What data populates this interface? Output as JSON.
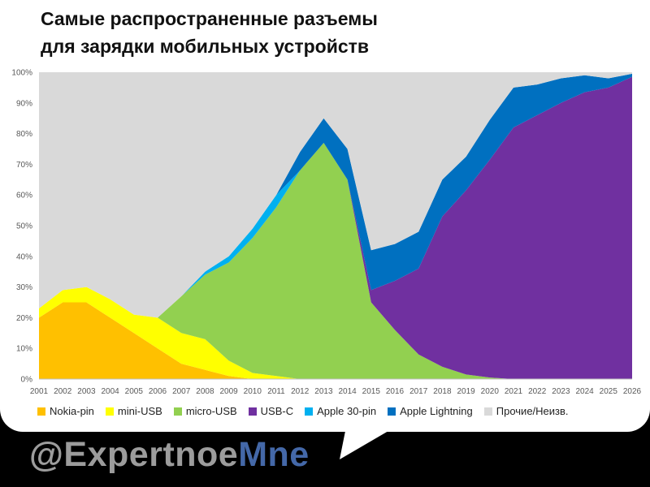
{
  "header": {
    "title_line1": "Самые распространенные разъемы",
    "title_line2": "для зарядки мобильных устройств"
  },
  "watermark": {
    "prefix": "@Expertnoe",
    "suffix": "Mne"
  },
  "colors": {
    "nokia": "#ffc000",
    "miniusb": "#ffff00",
    "microusb": "#92d050",
    "usbc": "#7030a0",
    "apple30": "#00b0f0",
    "lightning": "#0070c0",
    "other": "#d9d9d9"
  },
  "chart_data": {
    "type": "area",
    "stacked": true,
    "x": [
      "2001",
      "2002",
      "2003",
      "2004",
      "2005",
      "2006",
      "2007",
      "2008",
      "2009",
      "2010",
      "2011",
      "2012",
      "2013",
      "2014",
      "2015",
      "2016",
      "2017",
      "2018",
      "2019",
      "2020",
      "2021",
      "2022",
      "2023",
      "2024",
      "2025",
      "2026"
    ],
    "ylim": [
      0,
      100
    ],
    "yticks": [
      "0%",
      "10%",
      "20%",
      "30%",
      "40%",
      "50%",
      "60%",
      "70%",
      "80%",
      "90%",
      "100%"
    ],
    "grid": false,
    "legend_position": "bottom",
    "series": [
      {
        "name": "Nokia-pin",
        "color": "#ffc000",
        "values": [
          20,
          25,
          25,
          20,
          15,
          10,
          5,
          3,
          1,
          0,
          0,
          0,
          0,
          0,
          0,
          0,
          0,
          0,
          0,
          0,
          0,
          0,
          0,
          0,
          0,
          0
        ]
      },
      {
        "name": "mini-USB",
        "color": "#ffff00",
        "values": [
          3,
          4,
          5,
          6,
          6,
          10,
          10,
          10,
          5,
          2,
          1,
          0,
          0,
          0,
          0,
          0,
          0,
          0,
          0,
          0,
          0,
          0,
          0,
          0,
          0,
          0
        ]
      },
      {
        "name": "micro-USB",
        "color": "#92d050",
        "values": [
          0,
          0,
          0,
          0,
          0,
          0,
          12,
          21,
          32,
          44,
          55,
          68,
          77,
          65,
          25,
          16,
          8,
          4,
          1.5,
          0.5,
          0,
          0,
          0,
          0,
          0,
          0
        ]
      },
      {
        "name": "USB-C",
        "color": "#7030a0",
        "values": [
          0,
          0,
          0,
          0,
          0,
          0,
          0,
          0,
          0,
          0,
          0,
          0,
          0,
          0,
          4,
          16,
          28,
          49,
          60,
          71,
          82,
          86,
          90,
          93.5,
          95,
          98.5
        ]
      },
      {
        "name": "Apple 30-pin",
        "color": "#00b0f0",
        "values": [
          0,
          0,
          0,
          0,
          0,
          0,
          0,
          1,
          2,
          3,
          4,
          0,
          0,
          0,
          0,
          0,
          0,
          0,
          0,
          0,
          0,
          0,
          0,
          0,
          0,
          0
        ]
      },
      {
        "name": "Apple Lightning",
        "color": "#0070c0",
        "values": [
          0,
          0,
          0,
          0,
          0,
          0,
          0,
          0,
          0,
          0,
          0,
          6,
          8,
          10,
          13,
          12,
          12,
          12,
          11,
          13,
          13,
          10,
          8,
          5.5,
          3,
          1
        ]
      },
      {
        "name": "Прочие/Неизв.",
        "color": "#d9d9d9",
        "values": [
          77,
          71,
          70,
          74,
          79,
          80,
          73,
          65,
          60,
          51,
          40,
          26,
          15,
          25,
          58,
          56,
          52,
          35,
          27.5,
          15.5,
          5,
          4,
          2,
          1,
          2,
          0.5
        ]
      }
    ]
  }
}
